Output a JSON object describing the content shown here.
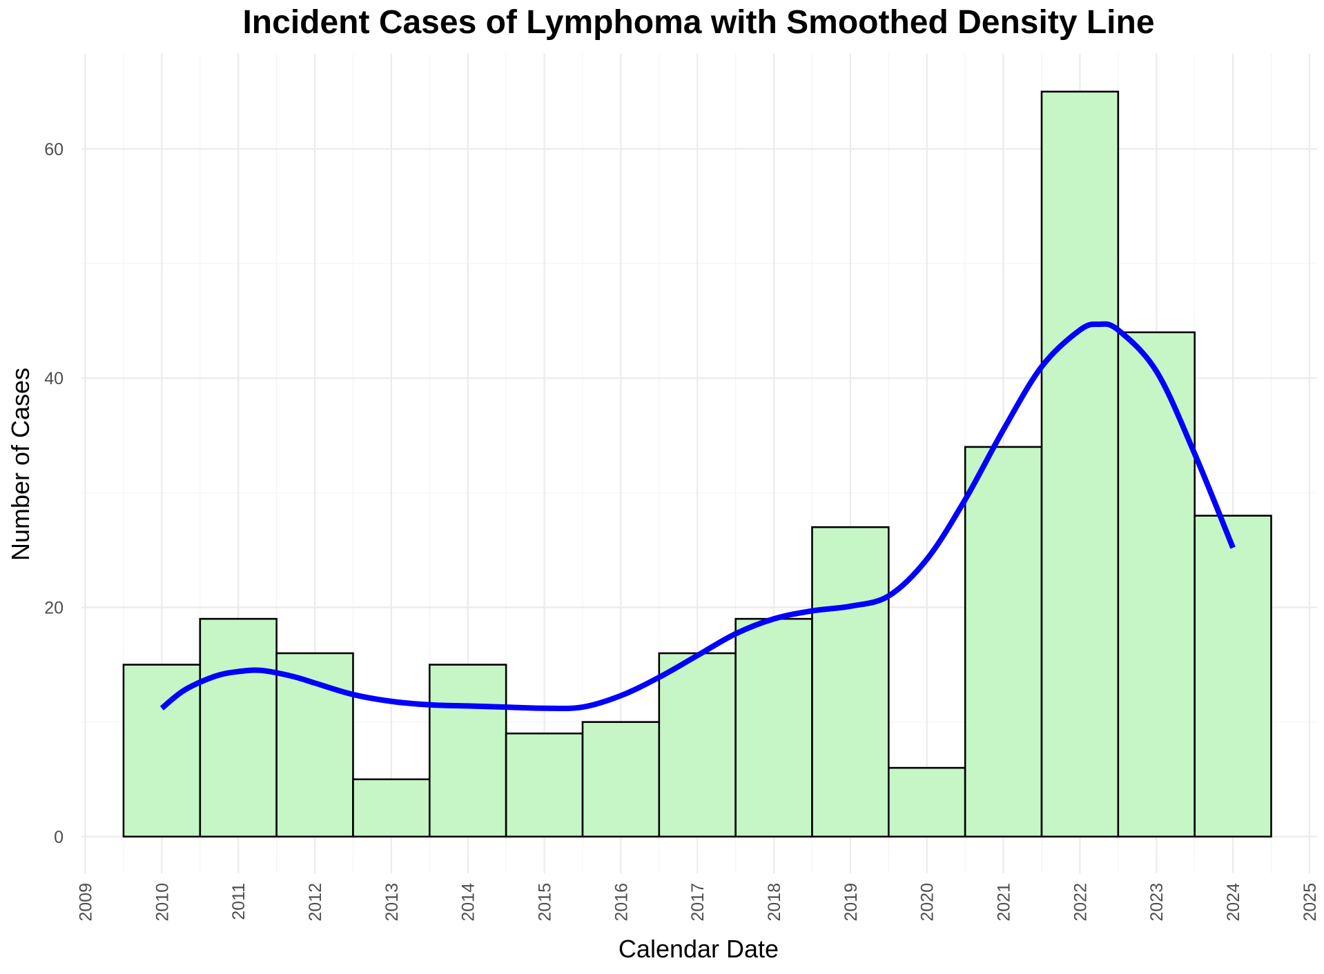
{
  "chart_data": {
    "type": "bar",
    "title": "Incident Cases of Lymphoma with Smoothed Density Line",
    "xlabel": "Calendar Date",
    "ylabel": "Number of Cases",
    "categories": [
      "2010",
      "2011",
      "2012",
      "2013",
      "2014",
      "2015",
      "2016",
      "2017",
      "2018",
      "2019",
      "2020",
      "2021",
      "2022",
      "2023",
      "2024"
    ],
    "values": [
      15,
      19,
      16,
      5,
      15,
      9,
      10,
      16,
      19,
      27,
      6,
      34,
      65,
      44,
      28
    ],
    "x_ticks": [
      "2009",
      "2010",
      "2011",
      "2012",
      "2013",
      "2014",
      "2015",
      "2016",
      "2017",
      "2018",
      "2019",
      "2020",
      "2021",
      "2022",
      "2023",
      "2024",
      "2025"
    ],
    "y_ticks": [
      0,
      20,
      40,
      60
    ],
    "xlim": [
      2008.95,
      2025.1
    ],
    "ylim": [
      -3.2,
      68.3
    ],
    "smooth_line": {
      "x": [
        2010.0,
        2010.3,
        2010.7,
        2011.0,
        2011.3,
        2011.7,
        2012.0,
        2012.5,
        2013.0,
        2013.5,
        2014.0,
        2014.5,
        2015.0,
        2015.5,
        2016.0,
        2016.5,
        2017.0,
        2017.5,
        2018.0,
        2018.5,
        2019.0,
        2019.5,
        2020.0,
        2020.5,
        2021.0,
        2021.5,
        2022.0,
        2022.25,
        2022.5,
        2023.0,
        2023.5,
        2024.0
      ],
      "y": [
        11.2,
        12.8,
        14.0,
        14.4,
        14.5,
        14.0,
        13.4,
        12.4,
        11.8,
        11.5,
        11.4,
        11.3,
        11.2,
        11.3,
        12.3,
        13.9,
        15.8,
        17.7,
        19.0,
        19.7,
        20.1,
        21.0,
        24.2,
        29.4,
        35.5,
        41.0,
        44.2,
        44.7,
        44.2,
        40.6,
        33.4,
        25.2
      ]
    },
    "colors": {
      "bar_fill": "#c6f6c6",
      "bar_stroke": "#000000",
      "line": "#0000ff"
    },
    "grid": true,
    "legend": "none"
  }
}
